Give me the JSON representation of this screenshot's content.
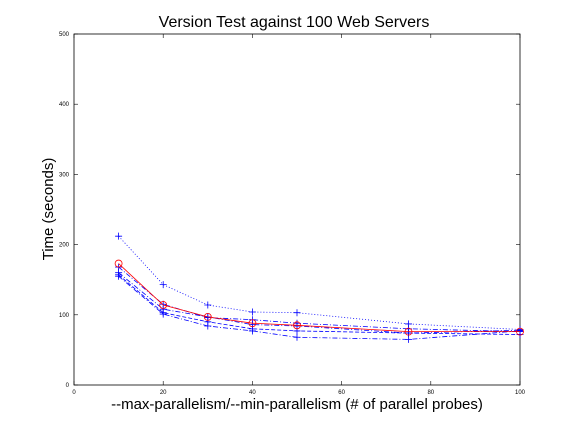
{
  "chart_data": {
    "type": "line",
    "title": "Version Test against 100 Web Servers",
    "xlabel": "--max-parallelism/--min-parallelism (# of parallel probes)",
    "ylabel": "Time (seconds)",
    "xlim": [
      0,
      100
    ],
    "ylim": [
      0,
      500
    ],
    "xticks": [
      "0",
      "20",
      "40",
      "60",
      "80",
      "100"
    ],
    "yticks": [
      "0",
      "100",
      "200",
      "300",
      "400",
      "500"
    ],
    "grid": false,
    "legend": "none",
    "x": [
      10,
      20,
      30,
      40,
      50,
      75,
      100
    ],
    "series": [
      {
        "values": [
          173,
          114,
          97,
          88,
          85,
          76,
          76
        ],
        "color": "#ff0000",
        "marker": "circle",
        "dash": "solid"
      },
      {
        "values": [
          212,
          143,
          114,
          104,
          103,
          87,
          79
        ],
        "color": "#0000ff",
        "marker": "plus",
        "dash": "dotted"
      },
      {
        "values": [
          168,
          115,
          96,
          93,
          88,
          80,
          76
        ],
        "color": "#0000ff",
        "marker": "plus",
        "dash": "dashdot"
      },
      {
        "values": [
          160,
          108,
          97,
          86,
          84,
          74,
          78
        ],
        "color": "#0000ff",
        "marker": "plus",
        "dash": "dashdot"
      },
      {
        "values": [
          157,
          103,
          90,
          80,
          77,
          74,
          72
        ],
        "color": "#0000ff",
        "marker": "plus",
        "dash": "dashed"
      },
      {
        "values": [
          155,
          101,
          84,
          77,
          68,
          65,
          77
        ],
        "color": "#0000ff",
        "marker": "plus",
        "dash": "dashdot"
      }
    ]
  }
}
